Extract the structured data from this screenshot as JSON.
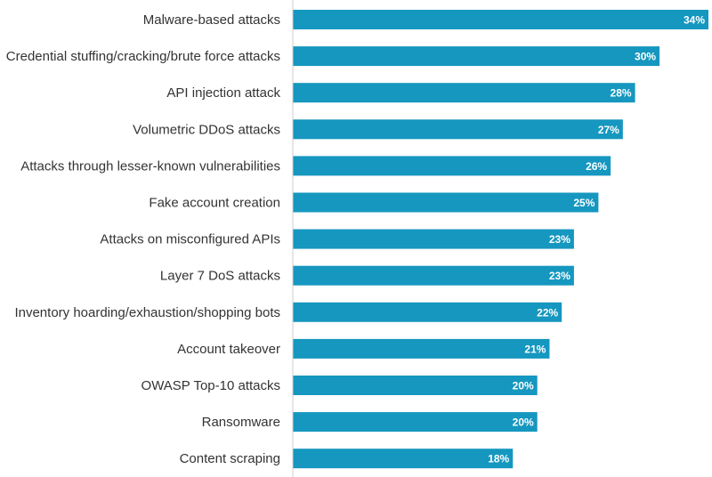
{
  "chart_data": {
    "type": "bar",
    "orientation": "horizontal",
    "categories": [
      "Malware-based attacks",
      "Credential stuffing/cracking/brute force attacks",
      "API injection attack",
      "Volumetric DDoS attacks",
      "Attacks through lesser-known vulnerabilities",
      "Fake account creation",
      "Attacks on misconfigured APIs",
      "Layer 7 DoS attacks",
      "Inventory hoarding/exhaustion/shopping bots",
      "Account takeover",
      "OWASP Top-10 attacks",
      "Ransomware",
      "Content scraping"
    ],
    "values": [
      34,
      30,
      28,
      27,
      26,
      25,
      23,
      23,
      22,
      21,
      20,
      20,
      18
    ],
    "value_labels": [
      "34%",
      "30%",
      "28%",
      "27%",
      "26%",
      "25%",
      "23%",
      "23%",
      "22%",
      "21%",
      "20%",
      "20%",
      "18%"
    ],
    "xlim": [
      0,
      34
    ],
    "grid": false,
    "legend": "none",
    "bar_color": "#1597bf",
    "axis_color": "#cccccc"
  }
}
